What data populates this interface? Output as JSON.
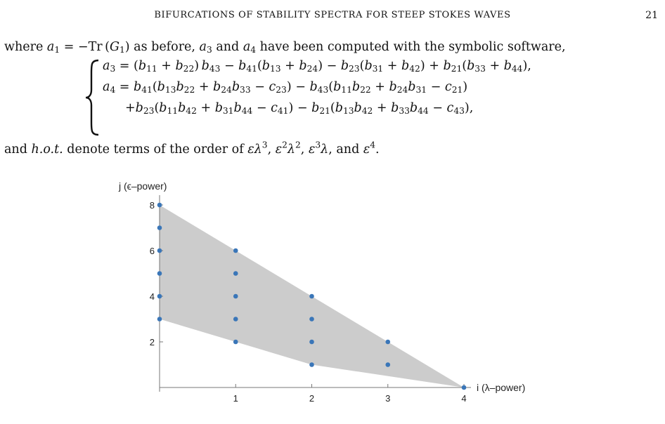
{
  "header": {
    "running_title": "BIFURCATIONS OF STABILITY SPECTRA FOR STEEP STOKES WAVES",
    "page_number": "21"
  },
  "intro": {
    "t1": "where ",
    "t2": " = −Tr",
    "t3": " as before, ",
    "t4": " and ",
    "t5": " have been computed with the symbolic software,"
  },
  "closing": {
    "t1": "and ",
    "t2": "h.o.t.",
    "t3": " denote terms of the order of ",
    "t4": ", and "
  },
  "chart_data": {
    "type": "scatter",
    "xlabel": "i (λ–power)",
    "ylabel": "j (ϵ–power)",
    "xlim": [
      0,
      4
    ],
    "ylim": [
      0,
      8
    ],
    "x_ticks": [
      1,
      2,
      3,
      4
    ],
    "y_ticks": [
      2,
      4,
      6,
      8
    ],
    "points": [
      {
        "x": 0,
        "y": 3
      },
      {
        "x": 0,
        "y": 4
      },
      {
        "x": 0,
        "y": 5
      },
      {
        "x": 0,
        "y": 6
      },
      {
        "x": 0,
        "y": 7
      },
      {
        "x": 0,
        "y": 8
      },
      {
        "x": 1,
        "y": 2
      },
      {
        "x": 1,
        "y": 3
      },
      {
        "x": 1,
        "y": 4
      },
      {
        "x": 1,
        "y": 5
      },
      {
        "x": 1,
        "y": 6
      },
      {
        "x": 2,
        "y": 1
      },
      {
        "x": 2,
        "y": 2
      },
      {
        "x": 2,
        "y": 3
      },
      {
        "x": 2,
        "y": 4
      },
      {
        "x": 3,
        "y": 1
      },
      {
        "x": 3,
        "y": 2
      },
      {
        "x": 4,
        "y": 0
      }
    ],
    "shaded_region": [
      [
        0,
        8
      ],
      [
        4,
        0
      ],
      [
        2,
        1
      ],
      [
        0,
        3
      ]
    ],
    "point_color": "#3a76b8",
    "fill_color": "#cccccc",
    "grid": false
  }
}
